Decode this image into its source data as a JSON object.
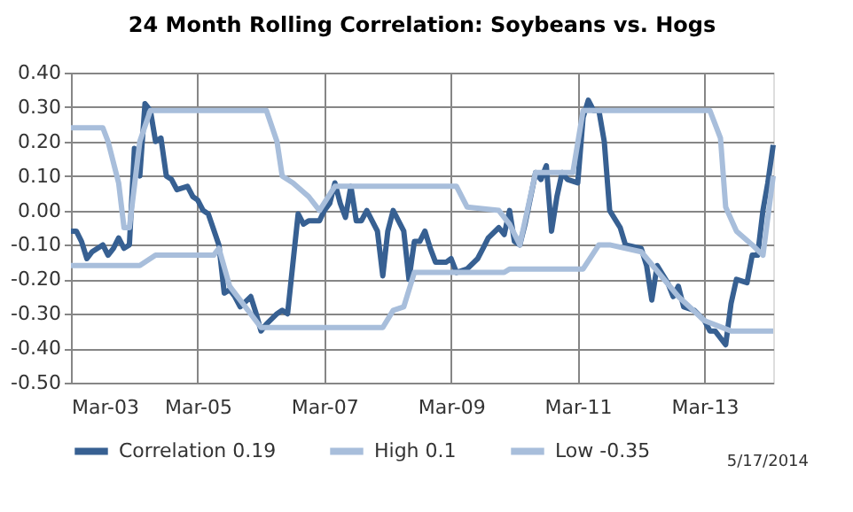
{
  "chart_data": {
    "type": "line",
    "title": "24 Month Rolling Correlation:  Soybeans vs. Hogs",
    "series": [
      {
        "name": "Correlation 0.19",
        "color": "#376092",
        "x": [
          "2003-03",
          "2003-04",
          "2003-05",
          "2003-06",
          "2003-07",
          "2003-09",
          "2003-10",
          "2003-11",
          "2003-12",
          "2004-01",
          "2004-02",
          "2004-03",
          "2004-04",
          "2004-05",
          "2004-06",
          "2004-07",
          "2004-08",
          "2004-09",
          "2004-10",
          "2004-11",
          "2005-01",
          "2005-02",
          "2005-03",
          "2005-04",
          "2005-05",
          "2005-07",
          "2005-08",
          "2005-09",
          "2005-10",
          "2005-11",
          "2006-01",
          "2006-02",
          "2006-03",
          "2006-04",
          "2006-06",
          "2006-07",
          "2006-08",
          "2006-10",
          "2006-11",
          "2006-12",
          "2007-02",
          "2007-03",
          "2007-04",
          "2007-05",
          "2007-06",
          "2007-07",
          "2007-08",
          "2007-09",
          "2007-10",
          "2007-11",
          "2008-01",
          "2008-02",
          "2008-03",
          "2008-04",
          "2008-06",
          "2008-07",
          "2008-08",
          "2008-09",
          "2008-10",
          "2008-11",
          "2008-12",
          "2009-02",
          "2009-03",
          "2009-04",
          "2009-06",
          "2009-08",
          "2009-09",
          "2009-10",
          "2009-12",
          "2010-01",
          "2010-02",
          "2010-03",
          "2010-04",
          "2010-05",
          "2010-07",
          "2010-08",
          "2010-09",
          "2010-10",
          "2010-11",
          "2010-12",
          "2011-01",
          "2011-03",
          "2011-04",
          "2011-05",
          "2011-06",
          "2011-07",
          "2011-08",
          "2011-09",
          "2011-11",
          "2011-12",
          "2012-03",
          "2012-04",
          "2012-05",
          "2012-06",
          "2012-08",
          "2012-09",
          "2012-10",
          "2012-11",
          "2013-01",
          "2013-03",
          "2013-04",
          "2013-05",
          "2013-07",
          "2013-08",
          "2013-09",
          "2013-11",
          "2013-12",
          "2014-01",
          "2014-02",
          "2014-03",
          "2014-04"
        ],
        "values": [
          -0.06,
          -0.06,
          -0.09,
          -0.14,
          -0.12,
          -0.1,
          -0.13,
          -0.11,
          -0.08,
          -0.11,
          -0.1,
          0.18,
          0.1,
          0.31,
          0.29,
          0.2,
          0.21,
          0.1,
          0.09,
          0.06,
          0.07,
          0.04,
          0.03,
          0.0,
          -0.01,
          -0.1,
          -0.24,
          -0.23,
          -0.25,
          -0.28,
          -0.25,
          -0.3,
          -0.35,
          -0.33,
          -0.3,
          -0.29,
          -0.3,
          -0.01,
          -0.04,
          -0.03,
          -0.03,
          0.0,
          0.02,
          0.08,
          0.02,
          -0.02,
          0.07,
          -0.03,
          -0.03,
          0.0,
          -0.06,
          -0.19,
          -0.06,
          0.0,
          -0.06,
          -0.2,
          -0.09,
          -0.09,
          -0.06,
          -0.11,
          -0.15,
          -0.15,
          -0.14,
          -0.18,
          -0.17,
          -0.14,
          -0.11,
          -0.08,
          -0.05,
          -0.07,
          0.0,
          -0.09,
          -0.1,
          -0.04,
          0.11,
          0.09,
          0.13,
          -0.06,
          0.04,
          0.11,
          0.09,
          0.08,
          0.27,
          0.32,
          0.29,
          0.29,
          0.2,
          0.0,
          -0.05,
          -0.1,
          -0.11,
          -0.16,
          -0.26,
          -0.16,
          -0.21,
          -0.25,
          -0.22,
          -0.28,
          -0.29,
          -0.32,
          -0.35,
          -0.35,
          -0.39,
          -0.27,
          -0.2,
          -0.21,
          -0.13,
          -0.13,
          0.0,
          0.08,
          0.19
        ]
      },
      {
        "name": "High 0.1",
        "color": "#a8bedb",
        "x": [
          "2003-03",
          "2003-09",
          "2003-10",
          "2003-12",
          "2004-01",
          "2004-02",
          "2004-04",
          "2004-06",
          "2006-04",
          "2006-06",
          "2006-07",
          "2006-09",
          "2006-12",
          "2007-02",
          "2007-05",
          "2009-04",
          "2009-06",
          "2009-12",
          "2010-02",
          "2010-04",
          "2010-07",
          "2011-02",
          "2011-04",
          "2013-04",
          "2013-06",
          "2013-07",
          "2013-09",
          "2013-12",
          "2014-02",
          "2014-04"
        ],
        "values": [
          0.24,
          0.24,
          0.2,
          0.08,
          -0.05,
          -0.05,
          0.2,
          0.29,
          0.29,
          0.2,
          0.1,
          0.08,
          0.04,
          0.0,
          0.07,
          0.07,
          0.01,
          0.0,
          -0.04,
          -0.1,
          0.11,
          0.11,
          0.29,
          0.29,
          0.21,
          0.01,
          -0.06,
          -0.1,
          -0.13,
          0.1
        ]
      },
      {
        "name": "Low -0.35",
        "color": "#a8bedb",
        "x": [
          "2003-03",
          "2004-04",
          "2004-07",
          "2005-06",
          "2005-07",
          "2005-09",
          "2006-03",
          "2008-02",
          "2008-04",
          "2008-06",
          "2008-08",
          "2010-01",
          "2010-02",
          "2011-04",
          "2011-07",
          "2011-09",
          "2012-03",
          "2012-10",
          "2013-03",
          "2013-08",
          "2014-04"
        ],
        "values": [
          -0.16,
          -0.16,
          -0.13,
          -0.13,
          -0.11,
          -0.22,
          -0.34,
          -0.34,
          -0.29,
          -0.28,
          -0.18,
          -0.18,
          -0.17,
          -0.17,
          -0.1,
          -0.1,
          -0.12,
          -0.25,
          -0.32,
          -0.35,
          -0.35
        ]
      }
    ],
    "xlim": [
      "2003-03",
      "2014-04"
    ],
    "xticks": [
      {
        "value": "2003-03",
        "label": "Mar-03"
      },
      {
        "value": "2005-03",
        "label": "Mar-05"
      },
      {
        "value": "2007-03",
        "label": "Mar-07"
      },
      {
        "value": "2009-03",
        "label": "Mar-09"
      },
      {
        "value": "2011-03",
        "label": "Mar-11"
      },
      {
        "value": "2013-03",
        "label": "Mar-13"
      }
    ],
    "ylim": [
      -0.5,
      0.4
    ],
    "yticks": [
      {
        "value": 0.4,
        "label": "0.40"
      },
      {
        "value": 0.3,
        "label": "0.30"
      },
      {
        "value": 0.2,
        "label": "0.20"
      },
      {
        "value": 0.1,
        "label": "0.10"
      },
      {
        "value": 0.0,
        "label": "0.00"
      },
      {
        "value": -0.1,
        "label": "-0.10"
      },
      {
        "value": -0.2,
        "label": "-0.20"
      },
      {
        "value": -0.3,
        "label": "-0.30"
      },
      {
        "value": -0.4,
        "label": "-0.40"
      },
      {
        "value": -0.5,
        "label": "-0.50"
      }
    ],
    "grid": true,
    "legend": "bottom",
    "line_style": "solid",
    "marker": "none",
    "annotations": [
      "5/17/2014"
    ]
  }
}
